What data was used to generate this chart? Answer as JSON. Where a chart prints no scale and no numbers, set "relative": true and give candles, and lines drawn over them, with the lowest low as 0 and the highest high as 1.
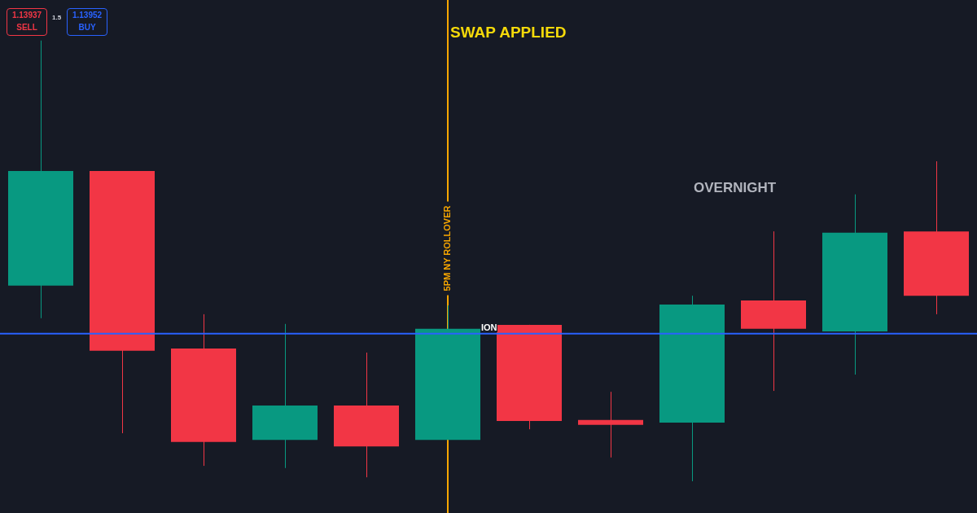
{
  "chart_data": {
    "type": "candlestick",
    "relative": true,
    "categories": [
      null,
      null,
      null,
      null,
      null,
      null,
      null,
      null,
      null,
      null,
      null,
      null
    ],
    "ohlc": [
      [
        0.444,
        1,
        0.37,
        0.704
      ],
      [
        0.704,
        0.704,
        0.109,
        0.296
      ],
      [
        0.301,
        0.379,
        0.035,
        0.089
      ],
      [
        0.094,
        0.357,
        0.03,
        0.172
      ],
      [
        0.172,
        0.292,
        0.009,
        0.079
      ],
      [
        0.094,
        0.399,
        0.094,
        0.346
      ],
      [
        0.355,
        0.355,
        0.118,
        0.137
      ],
      [
        0.139,
        0.203,
        0.054,
        0.128
      ],
      [
        0.133,
        0.421,
        0,
        0.401
      ],
      [
        0.41,
        0.567,
        0.205,
        0.346
      ],
      [
        0.34,
        0.651,
        0.242,
        0.564
      ],
      [
        0.567,
        0.726,
        0.379,
        0.421
      ]
    ],
    "colors": [
      "#089981",
      "#f23645",
      "#f23645",
      "#089981",
      "#f23645",
      "#089981",
      "#f23645",
      "#f23645",
      "#089981",
      "#f23645",
      "#089981",
      "#f23645"
    ],
    "ref_lines": [
      {
        "axis": "y",
        "value": 0.335,
        "color": "#2962ff"
      }
    ],
    "annotations": [
      "SWAP APPLIED",
      "OVERNIGHT",
      "ION",
      "1.13937",
      "SELL",
      "1.5",
      "1.13952",
      "BUY",
      "5PM NY ROLLOVER"
    ],
    "legend": false
  }
}
